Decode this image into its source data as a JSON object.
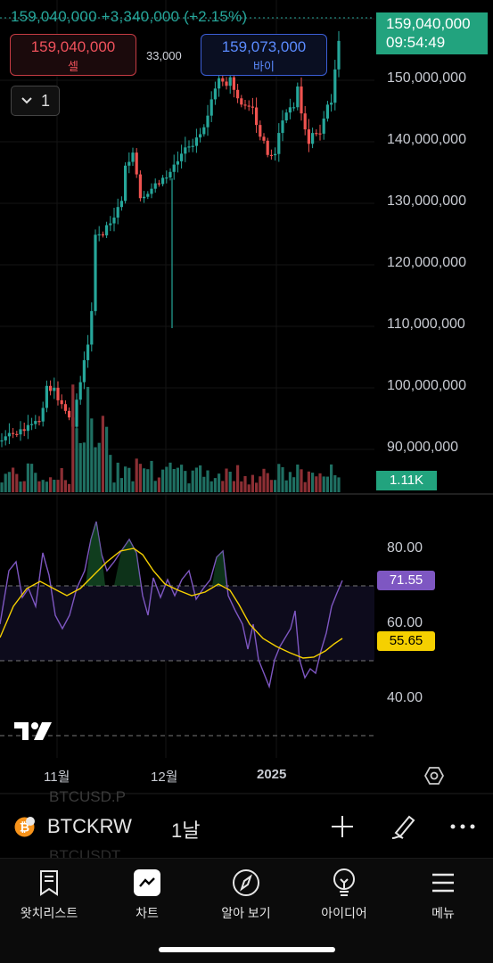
{
  "header": {
    "ohlc_text": "159,040,000 +3,340,000 (+2.15%)",
    "sell_price": "159,040,000",
    "sell_label": "셀",
    "spread": "33,000",
    "buy_price": "159,073,000",
    "buy_label": "바이",
    "indicator_count": "1"
  },
  "price_axis": {
    "labels": [
      "150,000,000",
      "140,000,000",
      "130,000,000",
      "120,000,000",
      "110,000,000",
      "100,000,000",
      "90,000,000"
    ],
    "current_price": "159,040,000",
    "countdown": "09:54:49"
  },
  "volume": {
    "badge": "1.11K"
  },
  "rsi": {
    "labels": [
      "80.00",
      "60.00",
      "40.00"
    ],
    "rsi_value": "71.55",
    "ma_value": "55.65"
  },
  "time_axis": {
    "labels": [
      "11월",
      "12월",
      "2025"
    ]
  },
  "colors": {
    "up": "#26a69a",
    "down": "#ef5350",
    "up_volume": "#1f6f62",
    "down_volume": "#8c2f34",
    "rsi_line": "#7e57c2",
    "rsi_ma": "#f5d000",
    "badge_green": "#22a37e"
  },
  "toolbar": {
    "symbol": "BTCKRW",
    "interval": "1날",
    "ghost_symbols": [
      "BTCUSD.P",
      "BTCUSDT"
    ]
  },
  "tabs": [
    {
      "label": "왓치리스트",
      "icon": "watchlist-icon"
    },
    {
      "label": "차트",
      "icon": "chart-icon"
    },
    {
      "label": "알아 보기",
      "icon": "compass-icon"
    },
    {
      "label": "아이디어",
      "icon": "lightbulb-icon"
    },
    {
      "label": "메뉴",
      "icon": "menu-icon"
    }
  ]
}
